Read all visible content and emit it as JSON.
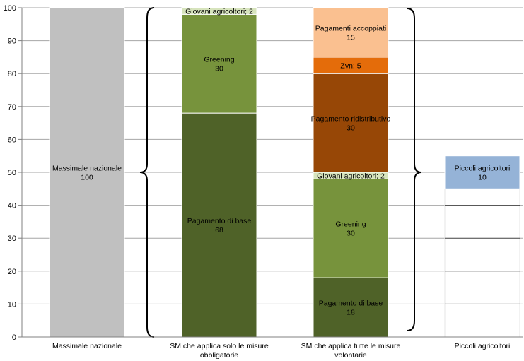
{
  "chart_data": {
    "type": "bar",
    "stacked": true,
    "ylim": [
      0,
      100
    ],
    "yticks": [
      0,
      10,
      20,
      30,
      40,
      50,
      60,
      70,
      80,
      90,
      100
    ],
    "grid": true,
    "legend": "none",
    "categories": [
      [
        "Massimale nazionale"
      ],
      [
        "SM che applica solo le misure",
        "obbligatorie"
      ],
      [
        "SM che applica tutte le misure",
        "volontarie"
      ],
      [
        "Piccoli agricoltori"
      ]
    ],
    "columns": [
      {
        "segments": [
          {
            "label": "Massimale nazionale",
            "value_text": "100",
            "start": 0,
            "value": 100,
            "color": "#c0c0c0"
          }
        ]
      },
      {
        "segments": [
          {
            "label": "Pagamento di base",
            "value_text": "68",
            "start": 0,
            "value": 68,
            "color": "#4f6228"
          },
          {
            "label": "Greening",
            "value_text": "30",
            "start": 68,
            "value": 30,
            "color": "#77933c"
          },
          {
            "label": "Giovani agricoltori; 2",
            "value_text": "",
            "start": 98,
            "value": 2,
            "color": "#d7e4bd"
          }
        ]
      },
      {
        "segments": [
          {
            "label": "Pagamento di base",
            "value_text": "18",
            "start": 0,
            "value": 18,
            "color": "#4f6228"
          },
          {
            "label": "Greening",
            "value_text": "30",
            "start": 18,
            "value": 30,
            "color": "#77933c"
          },
          {
            "label": "Giovani agricoltori; 2",
            "value_text": "",
            "start": 48,
            "value": 2,
            "color": "#d7e4bd"
          },
          {
            "label": "Pagamento ridistributivo",
            "value_text": "30",
            "start": 50,
            "value": 30,
            "color": "#974706"
          },
          {
            "label": "Zvn; 5",
            "value_text": "",
            "start": 80,
            "value": 5,
            "color": "#e46c0a"
          },
          {
            "label": "Pagamenti accoppiati",
            "value_text": "15",
            "start": 85,
            "value": 15,
            "color": "#fac090"
          }
        ]
      },
      {
        "segments": [
          {
            "label": "",
            "value_text": "",
            "start": 0,
            "value": 45,
            "color": "#ffffff"
          },
          {
            "label": "Piccoli agricoltori",
            "value_text": "10",
            "start": 45,
            "value": 10,
            "color": "#95b3d7"
          }
        ]
      }
    ]
  }
}
